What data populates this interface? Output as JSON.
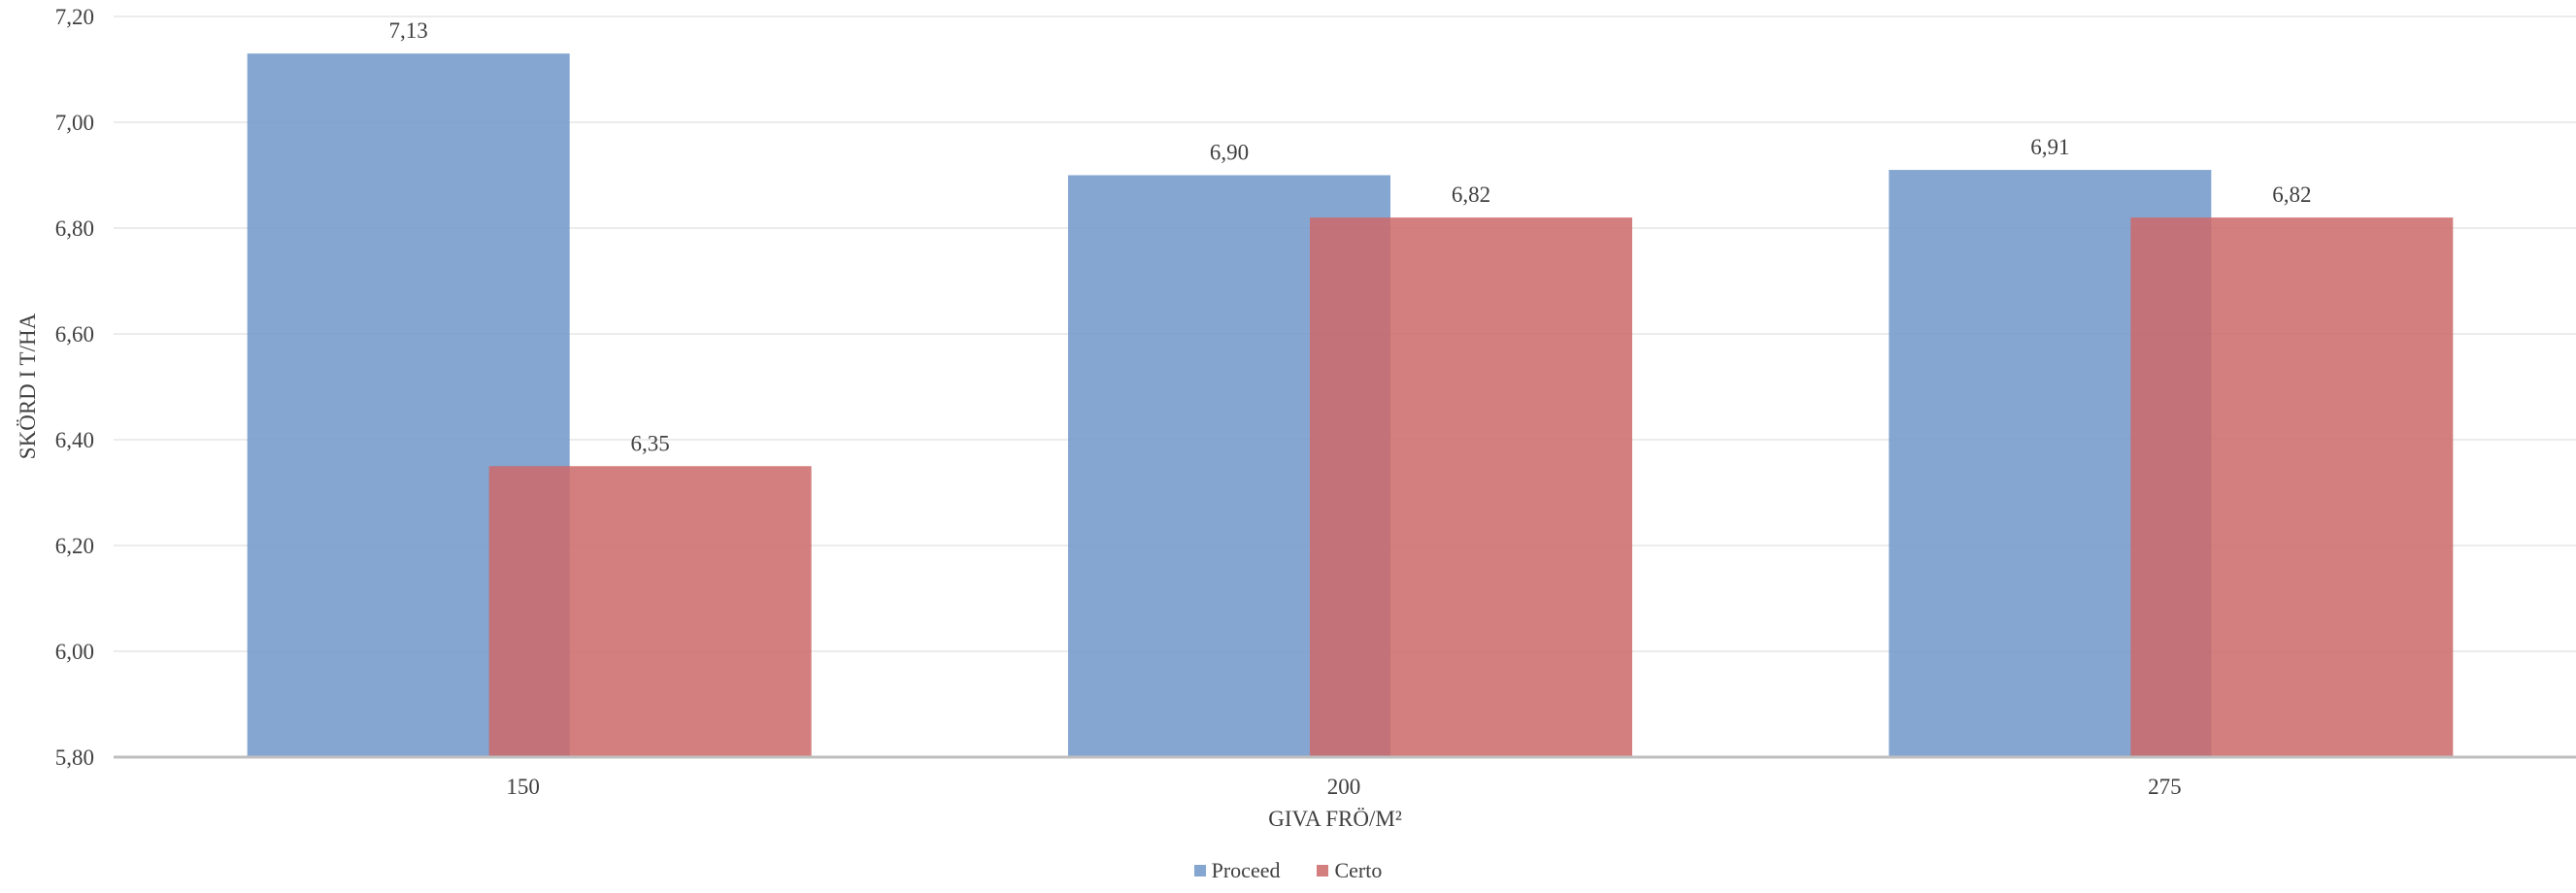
{
  "chart_data": {
    "type": "bar",
    "title": "",
    "xlabel": "GIVA FRÖ/M²",
    "ylabel": "SKÖRD I T/HA",
    "categories": [
      "150",
      "200",
      "275"
    ],
    "series": [
      {
        "name": "Proceed",
        "color": "#7097c8",
        "values": [
          7.13,
          6.9,
          6.91
        ],
        "labels": [
          "7,13",
          "6,90",
          "6,91"
        ]
      },
      {
        "name": "Certo",
        "color": "#cc6868",
        "values": [
          6.35,
          6.82,
          6.82
        ],
        "labels": [
          "6,35",
          "6,82",
          "6,82"
        ]
      }
    ],
    "ylim": [
      5.8,
      7.2
    ],
    "yticks": [
      "5,80",
      "6,00",
      "6,20",
      "6,40",
      "6,60",
      "6,80",
      "7,00",
      "7,20"
    ],
    "grid": true,
    "legend_position": "bottom-center"
  }
}
